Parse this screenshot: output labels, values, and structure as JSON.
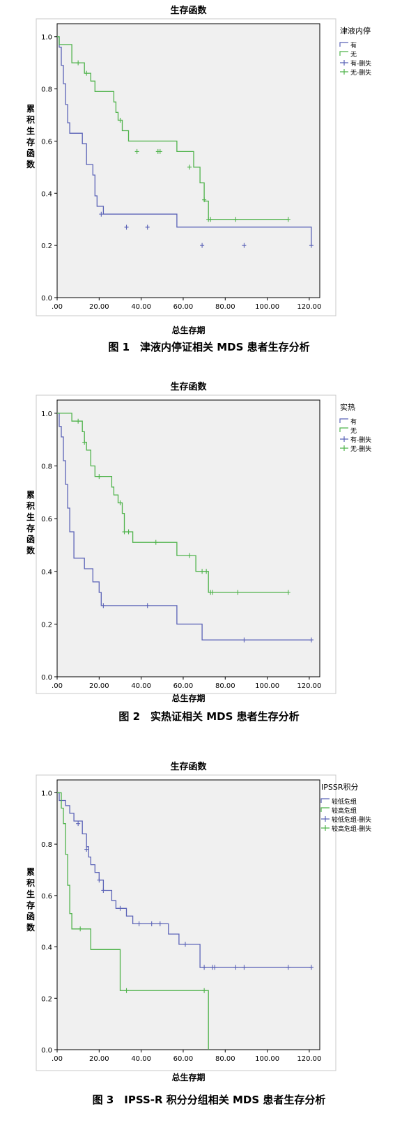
{
  "chart_data": [
    {
      "type": "line",
      "title": "生存函数",
      "xlabel": "总生存期",
      "ylabel": "累积生存函数",
      "xlim": [
        0,
        125
      ],
      "ylim": [
        0,
        1.05
      ],
      "xticks": [
        ".00",
        "20.00",
        "40.00",
        "60.00",
        "80.00",
        "100.00",
        "120.00"
      ],
      "yticks": [
        "0.0",
        "0.2",
        "0.4",
        "0.6",
        "0.8",
        "1.0"
      ],
      "legend_title": "津液内停",
      "legend": [
        {
          "label": "有",
          "color": "#5b63b7",
          "mark": "step"
        },
        {
          "label": "无",
          "color": "#4fb34b",
          "mark": "step"
        },
        {
          "label": "有-删失",
          "color": "#5b63b7",
          "mark": "censor"
        },
        {
          "label": "无-删失",
          "color": "#4fb34b",
          "mark": "censor"
        }
      ],
      "series": [
        {
          "name": "有",
          "color": "#5b63b7",
          "x": [
            0,
            1,
            2,
            3,
            4,
            5,
            6,
            8,
            12,
            14,
            17,
            18,
            19,
            22,
            57,
            121
          ],
          "y": [
            1.0,
            0.96,
            0.89,
            0.82,
            0.74,
            0.67,
            0.63,
            0.63,
            0.59,
            0.51,
            0.47,
            0.39,
            0.35,
            0.32,
            0.27,
            0.2
          ],
          "censored": [
            [
              21,
              0.32
            ],
            [
              33,
              0.27
            ],
            [
              43,
              0.27
            ],
            [
              69,
              0.2
            ],
            [
              89,
              0.2
            ],
            [
              121,
              0.2
            ]
          ]
        },
        {
          "name": "无",
          "color": "#4fb34b",
          "x": [
            0,
            1,
            7,
            13,
            16,
            18,
            27,
            28,
            29,
            31,
            34,
            57,
            65,
            68,
            70,
            72,
            110
          ],
          "y": [
            1.0,
            0.97,
            0.9,
            0.86,
            0.83,
            0.79,
            0.75,
            0.71,
            0.68,
            0.64,
            0.6,
            0.56,
            0.5,
            0.44,
            0.37,
            0.3,
            0.3
          ],
          "censored": [
            [
              10,
              0.9
            ],
            [
              14,
              0.86
            ],
            [
              30,
              0.68
            ],
            [
              38,
              0.56
            ],
            [
              48,
              0.56
            ],
            [
              49,
              0.56
            ],
            [
              63,
              0.5
            ],
            [
              70,
              0.375
            ],
            [
              72,
              0.3
            ],
            [
              73,
              0.3
            ],
            [
              85,
              0.3
            ],
            [
              110,
              0.3
            ]
          ]
        }
      ],
      "caption": "图 1　津液内停证相关 MDS 患者生存分析"
    },
    {
      "type": "line",
      "title": "生存函数",
      "xlabel": "总生存期",
      "ylabel": "累积生存函数",
      "xlim": [
        0,
        125
      ],
      "ylim": [
        0,
        1.05
      ],
      "xticks": [
        ".00",
        "20.00",
        "40.00",
        "60.00",
        "80.00",
        "100.00",
        "120.00"
      ],
      "yticks": [
        "0.0",
        "0.2",
        "0.4",
        "0.6",
        "0.8",
        "1.0"
      ],
      "legend_title": "实热",
      "legend": [
        {
          "label": "有",
          "color": "#5b63b7",
          "mark": "step"
        },
        {
          "label": "无",
          "color": "#4fb34b",
          "mark": "step"
        },
        {
          "label": "有-删失",
          "color": "#5b63b7",
          "mark": "censor"
        },
        {
          "label": "无-删失",
          "color": "#4fb34b",
          "mark": "censor"
        }
      ],
      "series": [
        {
          "name": "有",
          "color": "#5b63b7",
          "x": [
            0,
            1,
            2,
            3,
            4,
            5,
            6,
            8,
            13,
            17,
            20,
            21,
            57,
            69,
            121
          ],
          "y": [
            1.0,
            0.95,
            0.91,
            0.82,
            0.73,
            0.64,
            0.55,
            0.45,
            0.41,
            0.36,
            0.32,
            0.27,
            0.2,
            0.14,
            0.14
          ],
          "censored": [
            [
              22,
              0.27
            ],
            [
              43,
              0.27
            ],
            [
              89,
              0.14
            ],
            [
              121,
              0.14
            ]
          ]
        },
        {
          "name": "无",
          "color": "#4fb34b",
          "x": [
            0,
            7,
            12,
            13,
            14,
            16,
            18,
            26,
            27,
            29,
            31,
            32,
            36,
            57,
            66,
            72,
            110
          ],
          "y": [
            1.0,
            0.97,
            0.93,
            0.89,
            0.86,
            0.8,
            0.76,
            0.72,
            0.69,
            0.66,
            0.62,
            0.55,
            0.51,
            0.46,
            0.4,
            0.32,
            0.32
          ],
          "censored": [
            [
              10,
              0.97
            ],
            [
              13,
              0.89
            ],
            [
              20,
              0.76
            ],
            [
              30,
              0.66
            ],
            [
              32,
              0.55
            ],
            [
              34,
              0.55
            ],
            [
              47,
              0.51
            ],
            [
              63,
              0.46
            ],
            [
              69,
              0.4
            ],
            [
              71,
              0.4
            ],
            [
              73,
              0.32
            ],
            [
              74,
              0.32
            ],
            [
              86,
              0.32
            ],
            [
              110,
              0.32
            ]
          ]
        }
      ],
      "caption": "图 2　实热证相关 MDS 患者生存分析"
    },
    {
      "type": "line",
      "title": "生存函数",
      "xlabel": "总生存期",
      "ylabel": "累积生存函数",
      "xlim": [
        0,
        125
      ],
      "ylim": [
        0,
        1.05
      ],
      "xticks": [
        ".00",
        "20.00",
        "40.00",
        "60.00",
        "80.00",
        "100.00",
        "120.00"
      ],
      "yticks": [
        "0.0",
        "0.2",
        "0.4",
        "0.6",
        "0.8",
        "1.0"
      ],
      "legend_title": "IPSSR积分",
      "legend": [
        {
          "label": "较低危组",
          "color": "#5b63b7",
          "mark": "step"
        },
        {
          "label": "较高危组",
          "color": "#4fb34b",
          "mark": "step"
        },
        {
          "label": "较低危组-删失",
          "color": "#5b63b7",
          "mark": "censor"
        },
        {
          "label": "较高危组-删失",
          "color": "#4fb34b",
          "mark": "censor"
        }
      ],
      "series": [
        {
          "name": "较低危组",
          "color": "#5b63b7",
          "x": [
            0,
            1,
            4,
            6,
            8,
            12,
            14,
            15,
            16,
            18,
            20,
            22,
            26,
            28,
            33,
            36,
            53,
            58,
            68,
            121
          ],
          "y": [
            1.0,
            0.97,
            0.95,
            0.92,
            0.89,
            0.84,
            0.79,
            0.75,
            0.72,
            0.69,
            0.66,
            0.62,
            0.58,
            0.55,
            0.52,
            0.49,
            0.45,
            0.41,
            0.32,
            0.32
          ],
          "censored": [
            [
              10,
              0.88
            ],
            [
              14,
              0.78
            ],
            [
              20,
              0.66
            ],
            [
              22,
              0.62
            ],
            [
              30,
              0.55
            ],
            [
              39,
              0.49
            ],
            [
              45,
              0.49
            ],
            [
              49,
              0.49
            ],
            [
              61,
              0.41
            ],
            [
              70,
              0.32
            ],
            [
              74,
              0.32
            ],
            [
              75,
              0.32
            ],
            [
              85,
              0.32
            ],
            [
              89,
              0.32
            ],
            [
              110,
              0.32
            ],
            [
              121,
              0.32
            ]
          ]
        },
        {
          "name": "较高危组",
          "color": "#4fb34b",
          "x": [
            0,
            2,
            3,
            4,
            5,
            6,
            7,
            16,
            30,
            72,
            72
          ],
          "y": [
            1.0,
            0.94,
            0.88,
            0.76,
            0.64,
            0.53,
            0.47,
            0.39,
            0.23,
            0.23,
            0.0
          ],
          "censored": [
            [
              11,
              0.47
            ],
            [
              33,
              0.23
            ],
            [
              70,
              0.23
            ]
          ]
        }
      ],
      "caption": "图 3　IPSS-R 积分分组相关 MDS 患者生存分析"
    }
  ]
}
